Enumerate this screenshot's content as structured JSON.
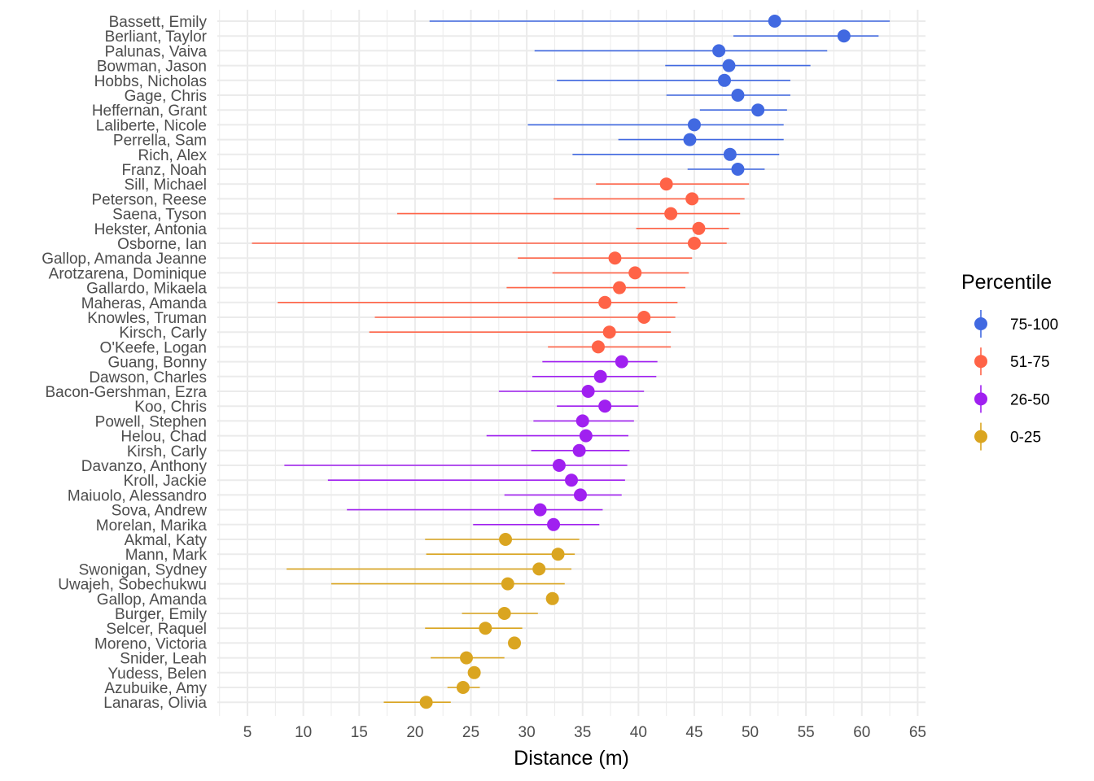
{
  "chart_data": {
    "type": "scatter",
    "xlabel": "Distance (m)",
    "ylabel": "",
    "xlim": [
      2.3,
      65.7
    ],
    "xticks": [
      5,
      10,
      15,
      20,
      25,
      30,
      35,
      40,
      45,
      50,
      55,
      60,
      65
    ],
    "grid": true,
    "legend": {
      "title": "Percentile",
      "position": "right",
      "entries": [
        {
          "label": "75-100",
          "color": "#4169E1"
        },
        {
          "label": "51-75",
          "color": "#FF6347"
        },
        {
          "label": "26-50",
          "color": "#A020F0"
        },
        {
          "label": "0-25",
          "color": "#DAA520"
        }
      ]
    },
    "points": [
      {
        "name": "Bassett, Emily",
        "value": 52.2,
        "low": 21.3,
        "high": 62.5,
        "group": "75-100"
      },
      {
        "name": "Berliant, Taylor",
        "value": 58.4,
        "low": 48.5,
        "high": 61.5,
        "group": "75-100"
      },
      {
        "name": "Palunas, Vaiva",
        "value": 47.2,
        "low": 30.7,
        "high": 56.9,
        "group": "75-100"
      },
      {
        "name": "Bowman, Jason",
        "value": 48.1,
        "low": 42.4,
        "high": 55.4,
        "group": "75-100"
      },
      {
        "name": "Hobbs, Nicholas",
        "value": 47.7,
        "low": 32.7,
        "high": 53.6,
        "group": "75-100"
      },
      {
        "name": "Gage, Chris",
        "value": 48.9,
        "low": 42.5,
        "high": 53.6,
        "group": "75-100"
      },
      {
        "name": "Heffernan, Grant",
        "value": 50.7,
        "low": 45.5,
        "high": 53.3,
        "group": "75-100"
      },
      {
        "name": "Laliberte, Nicole",
        "value": 45.0,
        "low": 30.1,
        "high": 53.0,
        "group": "75-100"
      },
      {
        "name": "Perrella, Sam",
        "value": 44.6,
        "low": 38.2,
        "high": 53.0,
        "group": "75-100"
      },
      {
        "name": "Rich, Alex",
        "value": 48.2,
        "low": 34.1,
        "high": 52.6,
        "group": "75-100"
      },
      {
        "name": "Franz, Noah",
        "value": 48.9,
        "low": 44.4,
        "high": 51.3,
        "group": "75-100"
      },
      {
        "name": "Sill, Michael",
        "value": 42.5,
        "low": 36.2,
        "high": 49.9,
        "group": "51-75"
      },
      {
        "name": "Peterson, Reese",
        "value": 44.8,
        "low": 32.4,
        "high": 49.5,
        "group": "51-75"
      },
      {
        "name": "Saena, Tyson",
        "value": 42.9,
        "low": 18.4,
        "high": 49.1,
        "group": "51-75"
      },
      {
        "name": "Hekster, Antonia",
        "value": 45.4,
        "low": 39.8,
        "high": 48.1,
        "group": "51-75"
      },
      {
        "name": "Osborne, Ian",
        "value": 45.0,
        "low": 5.4,
        "high": 47.9,
        "group": "51-75"
      },
      {
        "name": "Gallop, Amanda Jeanne",
        "value": 37.9,
        "low": 29.2,
        "high": 44.8,
        "group": "51-75"
      },
      {
        "name": "Arotzarena, Dominique",
        "value": 39.7,
        "low": 32.3,
        "high": 44.5,
        "group": "51-75"
      },
      {
        "name": "Gallardo, Mikaela",
        "value": 38.3,
        "low": 28.2,
        "high": 44.2,
        "group": "51-75"
      },
      {
        "name": "Maheras, Amanda",
        "value": 37.0,
        "low": 7.7,
        "high": 43.5,
        "group": "51-75"
      },
      {
        "name": "Knowles, Truman",
        "value": 40.5,
        "low": 16.4,
        "high": 43.3,
        "group": "51-75"
      },
      {
        "name": "Kirsch, Carly",
        "value": 37.4,
        "low": 15.9,
        "high": 42.9,
        "group": "51-75"
      },
      {
        "name": "O'Keefe, Logan",
        "value": 36.4,
        "low": 31.9,
        "high": 42.9,
        "group": "51-75"
      },
      {
        "name": "Guang, Bonny",
        "value": 38.5,
        "low": 31.4,
        "high": 41.7,
        "group": "26-50"
      },
      {
        "name": "Dawson, Charles",
        "value": 36.6,
        "low": 30.5,
        "high": 41.6,
        "group": "26-50"
      },
      {
        "name": "Bacon-Gershman, Ezra",
        "value": 35.5,
        "low": 27.5,
        "high": 40.5,
        "group": "26-50"
      },
      {
        "name": "Koo, Chris",
        "value": 37.0,
        "low": 32.7,
        "high": 40.0,
        "group": "26-50"
      },
      {
        "name": "Powell, Stephen",
        "value": 35.0,
        "low": 30.6,
        "high": 39.6,
        "group": "26-50"
      },
      {
        "name": "Helou, Chad",
        "value": 35.3,
        "low": 26.4,
        "high": 39.1,
        "group": "26-50"
      },
      {
        "name": "Kirsh, Carly",
        "value": 34.7,
        "low": 30.4,
        "high": 39.2,
        "group": "26-50"
      },
      {
        "name": "Davanzo, Anthony",
        "value": 32.9,
        "low": 8.3,
        "high": 39.0,
        "group": "26-50"
      },
      {
        "name": "Kroll, Jackie",
        "value": 34.0,
        "low": 12.2,
        "high": 38.8,
        "group": "26-50"
      },
      {
        "name": "Maiuolo, Alessandro",
        "value": 34.8,
        "low": 28.0,
        "high": 38.5,
        "group": "26-50"
      },
      {
        "name": "Sova, Andrew",
        "value": 31.2,
        "low": 13.9,
        "high": 36.8,
        "group": "26-50"
      },
      {
        "name": "Morelan, Marika",
        "value": 32.4,
        "low": 25.2,
        "high": 36.5,
        "group": "26-50"
      },
      {
        "name": "Akmal, Katy",
        "value": 28.1,
        "low": 20.9,
        "high": 34.7,
        "group": "0-25"
      },
      {
        "name": "Mann, Mark",
        "value": 32.8,
        "low": 21.0,
        "high": 34.3,
        "group": "0-25"
      },
      {
        "name": "Swonigan, Sydney",
        "value": 31.1,
        "low": 8.5,
        "high": 34.0,
        "group": "0-25"
      },
      {
        "name": "Uwajeh, Sobechukwu",
        "value": 28.3,
        "low": 12.5,
        "high": 33.4,
        "group": "0-25"
      },
      {
        "name": "Gallop, Amanda",
        "value": 32.3,
        "low": null,
        "high": null,
        "group": "0-25"
      },
      {
        "name": "Burger, Emily",
        "value": 28.0,
        "low": 24.2,
        "high": 31.0,
        "group": "0-25"
      },
      {
        "name": "Selcer, Raquel",
        "value": 26.3,
        "low": 20.9,
        "high": 29.6,
        "group": "0-25"
      },
      {
        "name": "Moreno, Victoria",
        "value": 28.9,
        "low": null,
        "high": null,
        "group": "0-25"
      },
      {
        "name": "Snider, Leah",
        "value": 24.6,
        "low": 21.4,
        "high": 28.0,
        "group": "0-25"
      },
      {
        "name": "Yudess, Belen",
        "value": 25.3,
        "low": null,
        "high": null,
        "group": "0-25"
      },
      {
        "name": "Azubuike, Amy",
        "value": 24.3,
        "low": 22.9,
        "high": 25.8,
        "group": "0-25"
      },
      {
        "name": "Lanaras, Olivia",
        "value": 21.0,
        "low": 17.2,
        "high": 23.2,
        "group": "0-25"
      }
    ]
  }
}
